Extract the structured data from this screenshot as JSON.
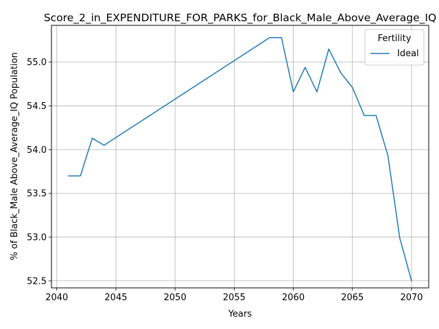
{
  "chart_data": {
    "type": "line",
    "title": "Score_2_in_EXPENDITURE_FOR_PARKS_for_Black_Male_Above_Average_IQ",
    "xlabel": "Years",
    "ylabel": "% of Black_Male Above_Average_IQ Population",
    "xlim": [
      2039.55,
      2071.45
    ],
    "ylim": [
      52.42,
      55.42
    ],
    "xticks": [
      2040,
      2045,
      2050,
      2055,
      2060,
      2065,
      2070
    ],
    "yticks": [
      52.5,
      53.0,
      53.5,
      54.0,
      54.5,
      55.0
    ],
    "ytick_labels": [
      "52.5",
      "53.0",
      "53.5",
      "54.0",
      "54.5",
      "55.0"
    ],
    "grid": true,
    "legend": {
      "title": "Fertility",
      "placement": "upper-right"
    },
    "series": [
      {
        "name": "Ideal",
        "color": "#1f77b4",
        "x": [
          2041,
          2042,
          2043,
          2044,
          2058,
          2059,
          2060,
          2061,
          2062,
          2063,
          2064,
          2065,
          2066,
          2067,
          2068,
          2069,
          2070
        ],
        "y": [
          53.7,
          53.7,
          54.13,
          54.05,
          55.28,
          55.28,
          54.66,
          54.94,
          54.66,
          55.15,
          54.88,
          54.71,
          54.39,
          54.39,
          53.93,
          52.99,
          52.5
        ]
      }
    ]
  }
}
